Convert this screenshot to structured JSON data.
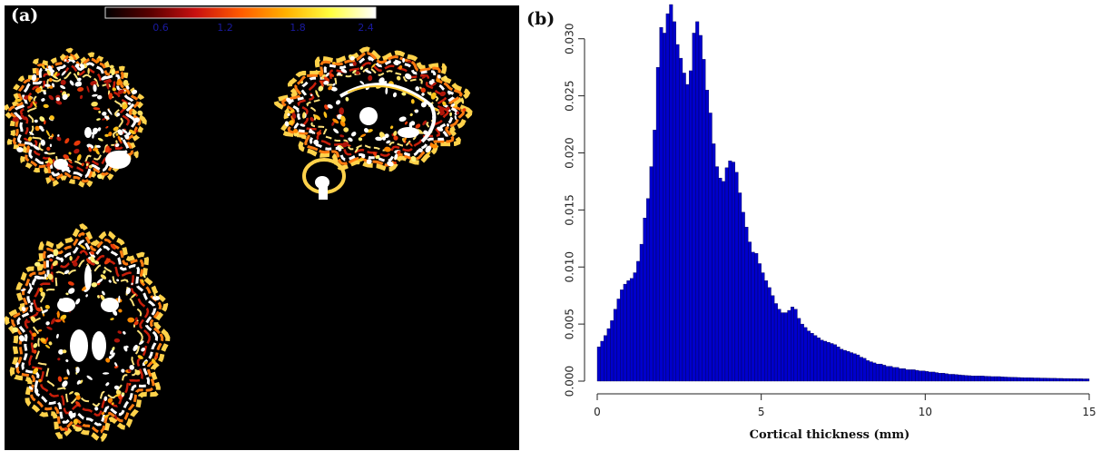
{
  "panel_a": {
    "label": "(a)",
    "colorbar": {
      "ticks": [
        "0.6",
        "1.2",
        "1.8",
        "2.4"
      ],
      "colors": [
        "#000000",
        "#5a0000",
        "#c81010",
        "#ff5a00",
        "#ffb000",
        "#ffff40",
        "#ffffff"
      ],
      "tick_color": "#1a1aa0"
    },
    "images": [
      {
        "name": "coronal-slice"
      },
      {
        "name": "sagittal-slice"
      },
      {
        "name": "axial-slice"
      }
    ]
  },
  "panel_b": {
    "label": "(b)"
  },
  "chart_data": {
    "type": "bar",
    "xlabel": "Cortical thickness (mm)",
    "ylabel": "",
    "xlim": [
      0,
      15
    ],
    "ylim": [
      0,
      0.033
    ],
    "xticks": [
      "0",
      "5",
      "10",
      "15"
    ],
    "yticks": [
      "0.000",
      "0.005",
      "0.010",
      "0.015",
      "0.020",
      "0.025",
      "0.030"
    ],
    "bin_width": 0.1,
    "bar_color": "#0000cc",
    "grid": false,
    "values": [
      0.003,
      0.0035,
      0.004,
      0.0046,
      0.0053,
      0.0063,
      0.0072,
      0.008,
      0.0085,
      0.0088,
      0.009,
      0.0095,
      0.0105,
      0.012,
      0.0143,
      0.016,
      0.0188,
      0.022,
      0.0275,
      0.031,
      0.0305,
      0.0322,
      0.033,
      0.0315,
      0.0295,
      0.0283,
      0.027,
      0.026,
      0.0272,
      0.0305,
      0.0315,
      0.0303,
      0.0282,
      0.0255,
      0.0235,
      0.0208,
      0.0188,
      0.0178,
      0.0175,
      0.0187,
      0.0193,
      0.0192,
      0.0183,
      0.0165,
      0.0148,
      0.0135,
      0.0122,
      0.0113,
      0.0112,
      0.0103,
      0.0095,
      0.0088,
      0.0082,
      0.0075,
      0.0068,
      0.0063,
      0.006,
      0.006,
      0.0062,
      0.0065,
      0.0063,
      0.0055,
      0.005,
      0.0047,
      0.0044,
      0.0042,
      0.004,
      0.0038,
      0.0036,
      0.0035,
      0.0034,
      0.0033,
      0.0032,
      0.003,
      0.0028,
      0.0027,
      0.0026,
      0.0025,
      0.0024,
      0.0023,
      0.0021,
      0.002,
      0.0018,
      0.0017,
      0.0016,
      0.0015,
      0.0015,
      0.0014,
      0.0013,
      0.0013,
      0.0012,
      0.0012,
      0.0011,
      0.0011,
      0.001,
      0.001,
      0.001,
      0.00095,
      0.0009,
      0.0009,
      0.00085,
      0.0008,
      0.0008,
      0.00075,
      0.0007,
      0.0007,
      0.00065,
      0.0006,
      0.0006,
      0.00058,
      0.00055,
      0.00052,
      0.0005,
      0.00048,
      0.00045,
      0.00045,
      0.00045,
      0.00045,
      0.00043,
      0.00042,
      0.0004,
      0.0004,
      0.0004,
      0.00038,
      0.00036,
      0.00035,
      0.00034,
      0.00033,
      0.00032,
      0.00031,
      0.0003,
      0.0003,
      0.00029,
      0.00028,
      0.00028,
      0.00027,
      0.00027,
      0.00026,
      0.00025,
      0.00025,
      0.00024,
      0.00024,
      0.00023,
      0.00023,
      0.00022,
      0.00022,
      0.00021,
      0.00021,
      0.0002,
      0.0002
    ]
  }
}
